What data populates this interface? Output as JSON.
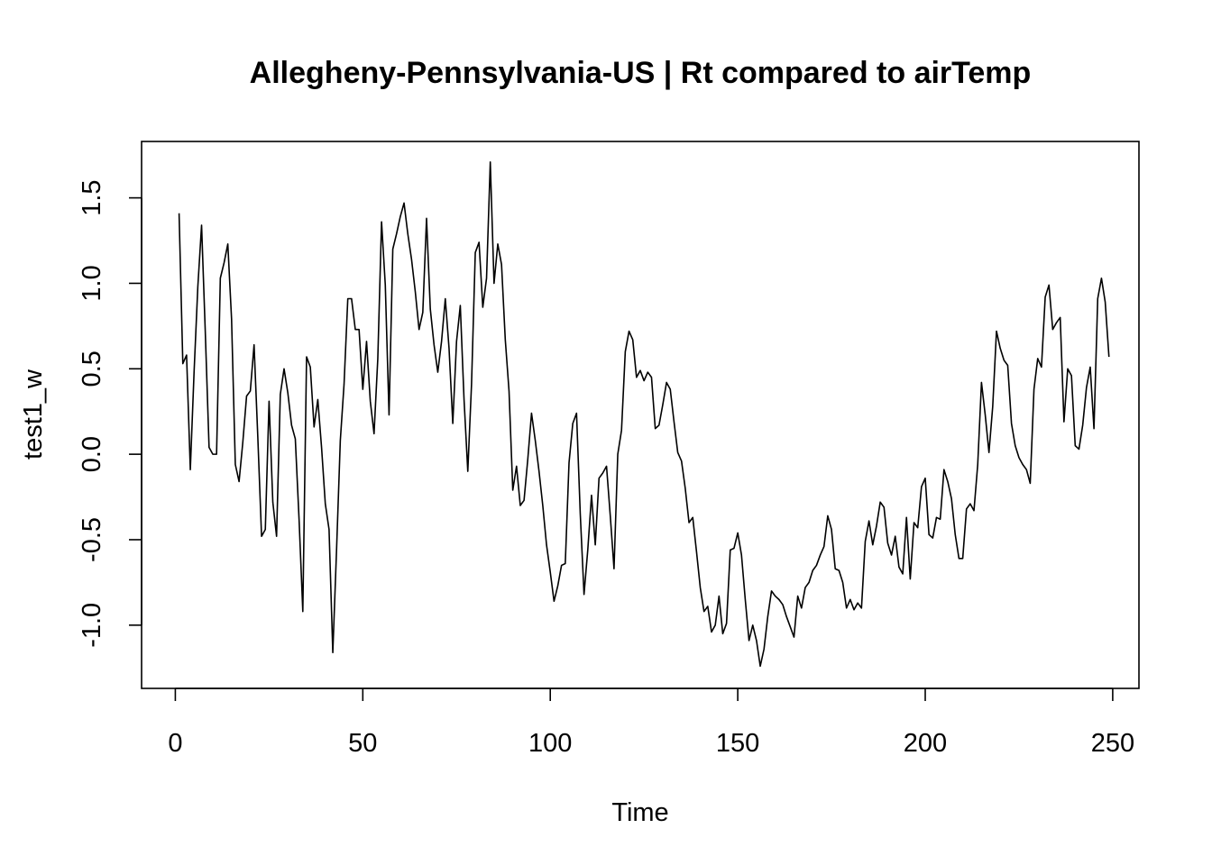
{
  "chart_data": {
    "type": "line",
    "title": "Allegheny-Pennsylvania-US | Rt compared to airTemp",
    "xlabel": "Time",
    "ylabel": "test1_w",
    "xlim": [
      -9,
      257
    ],
    "ylim": [
      -1.37,
      1.83
    ],
    "x_ticks": [
      0,
      50,
      100,
      150,
      200,
      250
    ],
    "x_tick_labels": [
      "0",
      "50",
      "100",
      "150",
      "200",
      "250"
    ],
    "y_ticks": [
      -1.0,
      -0.5,
      0.0,
      0.5,
      1.0,
      1.5
    ],
    "y_tick_labels": [
      "-1.0",
      "-0.5",
      "0.0",
      "0.5",
      "1.0",
      "1.5"
    ],
    "grid": false,
    "legend": "none",
    "line_color": "#000000",
    "series": [
      {
        "values": [
          1.41,
          0.53,
          0.58,
          -0.09,
          0.48,
          0.98,
          1.34,
          0.71,
          0.04,
          0.0,
          0.0,
          1.03,
          1.12,
          1.23,
          0.79,
          -0.06,
          -0.16,
          0.07,
          0.34,
          0.37,
          0.64,
          0.1,
          -0.48,
          -0.44,
          0.31,
          -0.28,
          -0.48,
          0.35,
          0.5,
          0.36,
          0.17,
          0.09,
          -0.38,
          -0.92,
          0.57,
          0.51,
          0.16,
          0.32,
          0.04,
          -0.29,
          -0.44,
          -1.16,
          -0.56,
          0.08,
          0.41,
          0.91,
          0.91,
          0.73,
          0.73,
          0.38,
          0.66,
          0.31,
          0.12,
          0.56,
          1.36,
          0.99,
          0.23,
          1.2,
          1.29,
          1.39,
          1.47,
          1.29,
          1.14,
          0.95,
          0.73,
          0.83,
          1.38,
          0.85,
          0.64,
          0.48,
          0.66,
          0.91,
          0.62,
          0.18,
          0.66,
          0.87,
          0.32,
          -0.1,
          0.41,
          1.18,
          1.24,
          0.86,
          1.03,
          1.71,
          1.0,
          1.23,
          1.11,
          0.67,
          0.37,
          -0.21,
          -0.07,
          -0.3,
          -0.27,
          -0.03,
          0.24,
          0.08,
          -0.1,
          -0.3,
          -0.53,
          -0.69,
          -0.86,
          -0.77,
          -0.65,
          -0.64,
          -0.05,
          0.18,
          0.24,
          -0.35,
          -0.82,
          -0.56,
          -0.24,
          -0.53,
          -0.14,
          -0.11,
          -0.07,
          -0.36,
          -0.67,
          0.0,
          0.14,
          0.6,
          0.72,
          0.67,
          0.45,
          0.49,
          0.43,
          0.48,
          0.45,
          0.15,
          0.17,
          0.29,
          0.42,
          0.38,
          0.19,
          0.01,
          -0.04,
          -0.2,
          -0.4,
          -0.37,
          -0.57,
          -0.78,
          -0.92,
          -0.89,
          -1.04,
          -1.0,
          -0.83,
          -1.05,
          -0.99,
          -0.56,
          -0.55,
          -0.46,
          -0.59,
          -0.85,
          -1.09,
          -1.0,
          -1.09,
          -1.24,
          -1.14,
          -0.95,
          -0.8,
          -0.83,
          -0.85,
          -0.88,
          -0.95,
          -1.01,
          -1.07,
          -0.83,
          -0.9,
          -0.78,
          -0.75,
          -0.68,
          -0.65,
          -0.59,
          -0.54,
          -0.36,
          -0.44,
          -0.67,
          -0.68,
          -0.75,
          -0.9,
          -0.85,
          -0.91,
          -0.87,
          -0.9,
          -0.51,
          -0.39,
          -0.53,
          -0.42,
          -0.28,
          -0.31,
          -0.52,
          -0.59,
          -0.48,
          -0.66,
          -0.7,
          -0.37,
          -0.73,
          -0.4,
          -0.43,
          -0.19,
          -0.14,
          -0.47,
          -0.49,
          -0.37,
          -0.38,
          -0.09,
          -0.16,
          -0.26,
          -0.47,
          -0.61,
          -0.61,
          -0.32,
          -0.29,
          -0.33,
          -0.06,
          0.42,
          0.23,
          0.01,
          0.28,
          0.72,
          0.62,
          0.55,
          0.52,
          0.18,
          0.05,
          -0.02,
          -0.06,
          -0.09,
          -0.17,
          0.38,
          0.56,
          0.51,
          0.92,
          0.99,
          0.73,
          0.77,
          0.8,
          0.19,
          0.5,
          0.46,
          0.05,
          0.03,
          0.17,
          0.39,
          0.51,
          0.15,
          0.91,
          1.03,
          0.89,
          0.57
        ]
      }
    ]
  }
}
